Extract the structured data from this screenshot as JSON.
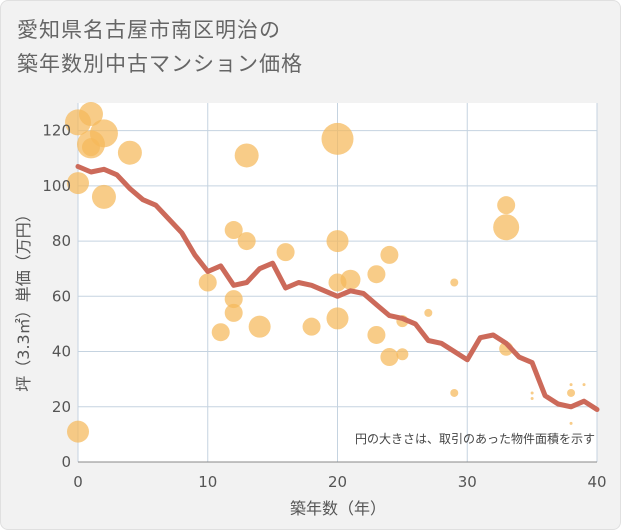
{
  "title_lines": [
    "愛知県名古屋市南区明治の",
    "築年数別中古マンション価格"
  ],
  "chart_data": {
    "type": "scatter",
    "xlabel": "築年数（年）",
    "ylabel": "坪（3.3㎡）単価（万円）",
    "xlim": [
      0,
      40
    ],
    "ylim": [
      0,
      130
    ],
    "xticks": [
      0,
      10,
      20,
      30,
      40
    ],
    "yticks": [
      0,
      20,
      40,
      60,
      80,
      100,
      120
    ],
    "grid": true,
    "note": "円の大きさは、取引のあった物件面積を示す",
    "colors": {
      "bubble": "#f5b95a",
      "line": "#cc6a5a",
      "grid": "#c5d3e0",
      "background": "#ffffff"
    },
    "scatter": [
      {
        "x": 0,
        "y": 123,
        "r": 13
      },
      {
        "x": 0,
        "y": 101,
        "r": 11
      },
      {
        "x": 0,
        "y": 11,
        "r": 11
      },
      {
        "x": 1,
        "y": 126,
        "r": 12
      },
      {
        "x": 1,
        "y": 115,
        "r": 14
      },
      {
        "x": 1,
        "y": 114,
        "r": 9
      },
      {
        "x": 2,
        "y": 119,
        "r": 14
      },
      {
        "x": 2,
        "y": 96,
        "r": 12
      },
      {
        "x": 4,
        "y": 112,
        "r": 12
      },
      {
        "x": 10,
        "y": 65,
        "r": 9
      },
      {
        "x": 11,
        "y": 47,
        "r": 9
      },
      {
        "x": 12,
        "y": 84,
        "r": 9
      },
      {
        "x": 12,
        "y": 59,
        "r": 9
      },
      {
        "x": 12,
        "y": 54,
        "r": 9
      },
      {
        "x": 13,
        "y": 111,
        "r": 12
      },
      {
        "x": 13,
        "y": 80,
        "r": 9
      },
      {
        "x": 14,
        "y": 49,
        "r": 11
      },
      {
        "x": 16,
        "y": 76,
        "r": 9
      },
      {
        "x": 18,
        "y": 49,
        "r": 9
      },
      {
        "x": 20,
        "y": 117,
        "r": 16
      },
      {
        "x": 20,
        "y": 80,
        "r": 11
      },
      {
        "x": 20,
        "y": 65,
        "r": 9
      },
      {
        "x": 20,
        "y": 52,
        "r": 11
      },
      {
        "x": 21,
        "y": 66,
        "r": 10
      },
      {
        "x": 23,
        "y": 68,
        "r": 9
      },
      {
        "x": 23,
        "y": 46,
        "r": 9
      },
      {
        "x": 24,
        "y": 75,
        "r": 9
      },
      {
        "x": 24,
        "y": 38,
        "r": 9
      },
      {
        "x": 25,
        "y": 51,
        "r": 6
      },
      {
        "x": 25,
        "y": 39,
        "r": 6
      },
      {
        "x": 27,
        "y": 54,
        "r": 4
      },
      {
        "x": 29,
        "y": 65,
        "r": 4
      },
      {
        "x": 29,
        "y": 25,
        "r": 4
      },
      {
        "x": 33,
        "y": 93,
        "r": 9
      },
      {
        "x": 33,
        "y": 85,
        "r": 13
      },
      {
        "x": 33,
        "y": 41,
        "r": 7
      },
      {
        "x": 35,
        "y": 25,
        "r": 1.5
      },
      {
        "x": 35,
        "y": 23,
        "r": 1.5
      },
      {
        "x": 38,
        "y": 28,
        "r": 1.5
      },
      {
        "x": 38,
        "y": 25,
        "r": 4
      },
      {
        "x": 39,
        "y": 28,
        "r": 1.5
      },
      {
        "x": 38,
        "y": 14,
        "r": 1.5
      }
    ],
    "trend": {
      "x": [
        0,
        1,
        2,
        3,
        4,
        5,
        6,
        7,
        8,
        9,
        10,
        11,
        12,
        13,
        14,
        15,
        16,
        17,
        18,
        19,
        20,
        21,
        22,
        23,
        24,
        25,
        26,
        27,
        28,
        29,
        30,
        31,
        32,
        33,
        34,
        35,
        36,
        37,
        38,
        39,
        40
      ],
      "y": [
        107,
        105,
        106,
        104,
        99,
        95,
        93,
        88,
        83,
        75,
        69,
        71,
        64,
        65,
        70,
        72,
        63,
        65,
        64,
        62,
        60,
        62,
        61,
        57,
        53,
        52,
        50,
        44,
        43,
        40,
        37,
        45,
        46,
        43,
        38,
        36,
        24,
        21,
        20,
        22,
        19
      ]
    }
  }
}
